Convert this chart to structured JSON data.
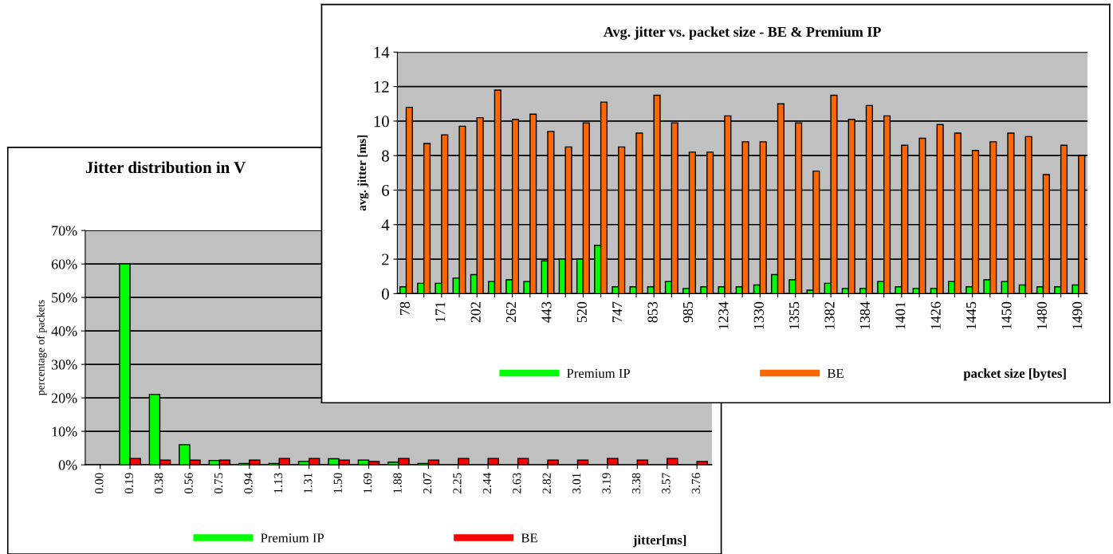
{
  "chart_data": [
    {
      "type": "bar",
      "title": "Jitter distribution in V",
      "xlabel": "jitter[ms]",
      "ylabel": "percentage of packets",
      "legend": "bottom",
      "grid": "y",
      "categories": [
        "0.00",
        "0.19",
        "0.38",
        "0.56",
        "0.75",
        "0.94",
        "1.13",
        "1.31",
        "1.50",
        "1.69",
        "1.88",
        "2.07",
        "2.25",
        "2.44",
        "2.63",
        "2.82",
        "3.01",
        "3.19",
        "3.38",
        "3.57",
        "3.76"
      ],
      "ylim": [
        0,
        70
      ],
      "yticks": [
        {
          "value": 0,
          "label": "0%"
        },
        {
          "value": 10,
          "label": "10%"
        },
        {
          "value": 20,
          "label": "20%"
        },
        {
          "value": 30,
          "label": "30%"
        },
        {
          "value": 40,
          "label": "40%"
        },
        {
          "value": 50,
          "label": "50%"
        },
        {
          "value": 60,
          "label": "60%"
        },
        {
          "value": 70,
          "label": "70%"
        }
      ],
      "series": [
        {
          "name": "Premium IP",
          "color": "#00ff00",
          "values": [
            0,
            60,
            21,
            6,
            1.3,
            0.4,
            0.4,
            1,
            1.8,
            1.4,
            0.8,
            0.4,
            0,
            0,
            0,
            0,
            0,
            0,
            0,
            0,
            0
          ]
        },
        {
          "name": "BE",
          "color": "#ff0000",
          "values": [
            0,
            1.9,
            1.4,
            1.4,
            1.4,
            1.4,
            1.9,
            1.9,
            1.4,
            1,
            1.9,
            1.4,
            1.9,
            1.9,
            1.9,
            1.4,
            1.4,
            1.9,
            1.4,
            1.9,
            1
          ]
        }
      ]
    },
    {
      "type": "bar",
      "title": "Avg. jitter vs. packet size - BE & Premium IP",
      "xlabel": "packet size [bytes]",
      "ylabel": "avg. jitter [ms]",
      "legend": "bottom",
      "grid": "y",
      "categories": [
        "78",
        null,
        "171",
        null,
        "202",
        null,
        "262",
        null,
        "443",
        null,
        "520",
        null,
        "747",
        null,
        "853",
        null,
        "985",
        null,
        "1234",
        null,
        "1330",
        null,
        "1355",
        null,
        "1382",
        null,
        "1384",
        null,
        "1401",
        null,
        "1426",
        null,
        "1445",
        null,
        "1450",
        null,
        "1480",
        null,
        "1490"
      ],
      "ylim": [
        0,
        14
      ],
      "yticks": [
        0,
        2,
        4,
        6,
        8,
        10,
        12,
        14
      ],
      "series": [
        {
          "name": "Premium IP",
          "color": "#00ff00",
          "values": [
            0.4,
            0.6,
            0.6,
            0.9,
            1.1,
            0.7,
            0.8,
            0.7,
            1.9,
            2.0,
            2.0,
            2.8,
            0.4,
            0.4,
            0.4,
            0.7,
            0.3,
            0.4,
            0.4,
            0.4,
            0.5,
            1.1,
            0.8,
            0.2,
            0.6,
            0.3,
            0.3,
            0.7,
            0.4,
            0.3,
            0.3,
            0.7,
            0.4,
            0.8,
            0.7,
            0.5,
            0.4,
            0.4,
            0.5
          ]
        },
        {
          "name": "BE",
          "color": "#ff6600",
          "values": [
            10.8,
            8.7,
            9.2,
            9.7,
            10.2,
            11.8,
            10.1,
            10.4,
            9.4,
            8.5,
            9.9,
            11.1,
            8.5,
            9.3,
            11.5,
            9.9,
            8.2,
            8.2,
            10.3,
            8.8,
            8.8,
            11.0,
            9.9,
            7.1,
            11.5,
            10.1,
            10.9,
            10.3,
            8.6,
            9.0,
            9.8,
            9.3,
            8.3,
            8.8,
            9.3,
            9.1,
            6.9,
            8.6,
            8.0
          ]
        }
      ]
    }
  ]
}
